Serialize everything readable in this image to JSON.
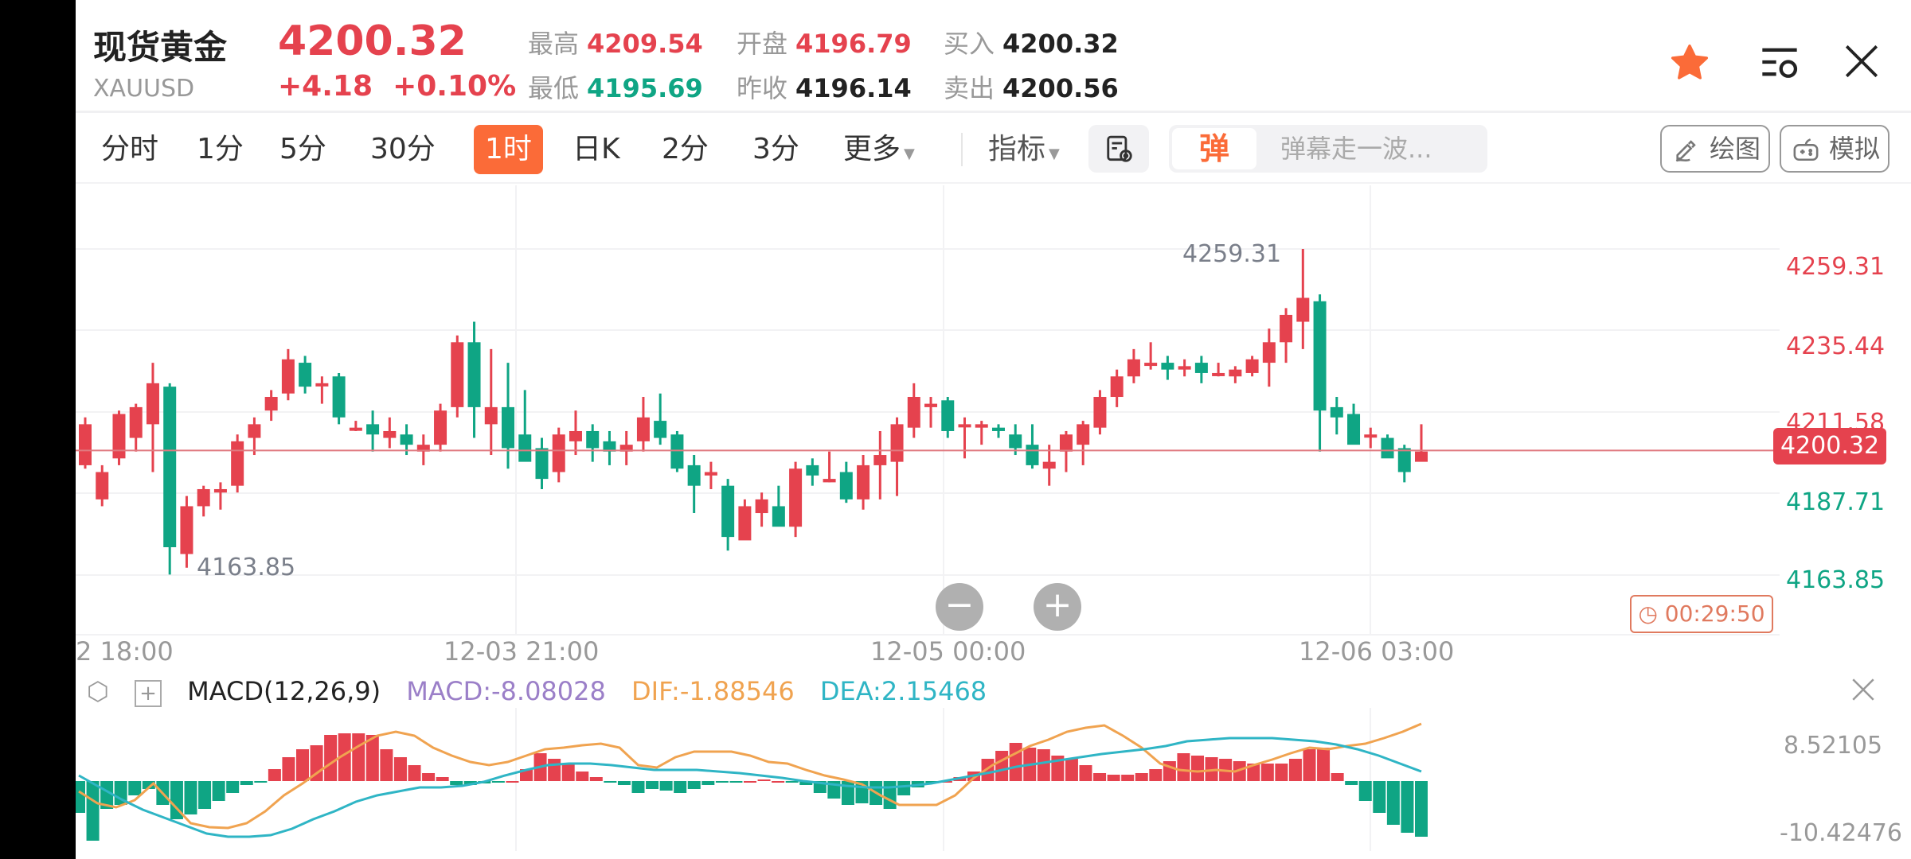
{
  "header": {
    "title": "现货黄金",
    "symbol": "XAUUSD",
    "price": "4200.32",
    "change": "+4.18",
    "change_pct": "+0.10%",
    "high_label": "最高",
    "high": "4209.54",
    "low_label": "最低",
    "low": "4195.69",
    "open_label": "开盘",
    "open": "4196.79",
    "prev_close_label": "昨收",
    "prev_close": "4196.14",
    "bid_label": "买入",
    "bid": "4200.32",
    "ask_label": "卖出",
    "ask": "4200.56",
    "icons": [
      "star-icon",
      "list-refresh-icon",
      "close-icon"
    ]
  },
  "toolbar": {
    "tabs": [
      {
        "label": "分时"
      },
      {
        "label": "1分"
      },
      {
        "label": "5分"
      },
      {
        "label": "30分"
      },
      {
        "label": "1时",
        "active": true
      },
      {
        "label": "日K"
      },
      {
        "label": "2分"
      },
      {
        "label": "3分"
      },
      {
        "label": "更多"
      }
    ],
    "indicator_label": "指标",
    "danmu_icon": "弹",
    "danmu_placeholder": "弹幕走一波...",
    "draw_label": "绘图",
    "simulate_label": "模拟"
  },
  "chart": {
    "y_ticks": [
      "4259.31",
      "4235.44",
      "4211.58",
      "4187.71",
      "4163.85"
    ],
    "current_price": "4200.32",
    "high_marker": "4259.31",
    "low_marker": "4163.85",
    "x_ticks": [
      "2 18:00",
      "12-03 21:00",
      "12-05 00:00",
      "12-06 03:00"
    ],
    "countdown": "00:29:50",
    "zoom_out": "−",
    "zoom_in": "+"
  },
  "macd": {
    "title": "MACD(12,26,9)",
    "macd": "MACD:-8.08028",
    "dif": "DIF:-1.88546",
    "dea": "DEA:2.15468",
    "y_top": "8.52105",
    "y_bottom": "-10.42476"
  },
  "colors": {
    "up": "#e5424e",
    "down": "#0fa584",
    "accent": "#fb6b38",
    "dif": "#f0a350",
    "dea": "#2fb5c5",
    "macd": "#9b7fc8"
  },
  "chart_data": {
    "type": "candlestick",
    "title": "现货黄金 XAUUSD 1时",
    "ylim": [
      4160,
      4262
    ],
    "candles": [
      [
        4196,
        4208,
        4195,
        4210
      ],
      [
        4186,
        4194,
        4184,
        4196
      ],
      [
        4198,
        4211,
        4196,
        4212
      ],
      [
        4204,
        4213,
        4200,
        4214
      ],
      [
        4208,
        4220,
        4194,
        4226
      ],
      [
        4219,
        4172,
        4164,
        4220
      ],
      [
        4170,
        4184,
        4166,
        4187
      ],
      [
        4184,
        4189,
        4181,
        4190
      ],
      [
        4188,
        4189,
        4183,
        4191
      ],
      [
        4190,
        4203,
        4188,
        4205
      ],
      [
        4204,
        4208,
        4199,
        4210
      ],
      [
        4212,
        4216,
        4209,
        4218
      ],
      [
        4217,
        4227,
        4215,
        4230
      ],
      [
        4226,
        4219,
        4217,
        4228
      ],
      [
        4220,
        4220,
        4214,
        4222
      ],
      [
        4222,
        4210,
        4208,
        4223
      ],
      [
        4207,
        4207,
        4206,
        4209
      ],
      [
        4208,
        4205,
        4200,
        4212
      ],
      [
        4204,
        4206,
        4201,
        4210
      ],
      [
        4205,
        4202,
        4199,
        4208
      ],
      [
        4200,
        4202,
        4196,
        4205
      ],
      [
        4202,
        4212,
        4200,
        4214
      ],
      [
        4213,
        4232,
        4210,
        4234
      ],
      [
        4232,
        4213,
        4204,
        4238
      ],
      [
        4208,
        4213,
        4199,
        4230
      ],
      [
        4213,
        4201,
        4195,
        4226
      ],
      [
        4205,
        4197,
        4200,
        4218
      ],
      [
        4201,
        4192,
        4189,
        4204
      ],
      [
        4194,
        4205,
        4191,
        4207
      ],
      [
        4203,
        4206,
        4199,
        4212
      ],
      [
        4206,
        4201,
        4197,
        4208
      ],
      [
        4203,
        4200,
        4196,
        4206
      ],
      [
        4200,
        4202,
        4196,
        4206
      ],
      [
        4203,
        4210,
        4200,
        4216
      ],
      [
        4209,
        4204,
        4202,
        4217
      ],
      [
        4205,
        4195,
        4194,
        4206
      ],
      [
        4196,
        4190,
        4182,
        4199
      ],
      [
        4193,
        4194,
        4189,
        4197
      ],
      [
        4190,
        4175,
        4171,
        4192
      ],
      [
        4174,
        4184,
        4177,
        4186
      ],
      [
        4182,
        4186,
        4178,
        4188
      ],
      [
        4184,
        4178,
        4182,
        4190
      ],
      [
        4178,
        4195,
        4175,
        4197
      ],
      [
        4196,
        4193,
        4190,
        4198
      ],
      [
        4191,
        4192,
        4191,
        4200
      ],
      [
        4194,
        4186,
        4185,
        4197
      ],
      [
        4186,
        4196,
        4183,
        4199
      ],
      [
        4196,
        4199,
        4186,
        4206
      ],
      [
        4197,
        4208,
        4187,
        4210
      ],
      [
        4207,
        4216,
        4204,
        4220
      ],
      [
        4213,
        4214,
        4207,
        4216
      ],
      [
        4215,
        4206,
        4204,
        4216
      ],
      [
        4208,
        4208,
        4198,
        4210
      ],
      [
        4207,
        4208,
        4202,
        4209
      ],
      [
        4207,
        4206,
        4204,
        4208
      ],
      [
        4205,
        4201,
        4199,
        4208
      ],
      [
        4202,
        4196,
        4195,
        4208
      ],
      [
        4195,
        4197,
        4190,
        4202
      ],
      [
        4200,
        4205,
        4194,
        4206
      ],
      [
        4202,
        4208,
        4196,
        4209
      ],
      [
        4207,
        4216,
        4205,
        4218
      ],
      [
        4216,
        4222,
        4213,
        4224
      ],
      [
        4222,
        4227,
        4220,
        4230
      ],
      [
        4226,
        4226,
        4224,
        4232
      ],
      [
        4226,
        4224,
        4221,
        4228
      ],
      [
        4224,
        4225,
        4222,
        4227
      ],
      [
        4226,
        4223,
        4220,
        4228
      ],
      [
        4223,
        4223,
        4222,
        4226
      ],
      [
        4222,
        4224,
        4220,
        4225
      ],
      [
        4223,
        4227,
        4222,
        4228
      ],
      [
        4226,
        4232,
        4219,
        4236
      ],
      [
        4232,
        4240,
        4226,
        4242
      ],
      [
        4238,
        4245,
        4230,
        4259.31
      ],
      [
        4244,
        4212,
        4200,
        4246
      ],
      [
        4213,
        4210,
        4205,
        4216
      ],
      [
        4211,
        4202,
        4203,
        4214
      ],
      [
        4205,
        4205,
        4201,
        4207
      ],
      [
        4204,
        4198,
        4199,
        4205
      ],
      [
        4201,
        4194,
        4191,
        4202
      ],
      [
        4197,
        4200,
        4198,
        4208
      ]
    ],
    "candle_format": "[open, close, low, high] approximate",
    "macd_hist_range": [
      -10.42476,
      8.52105
    ]
  }
}
